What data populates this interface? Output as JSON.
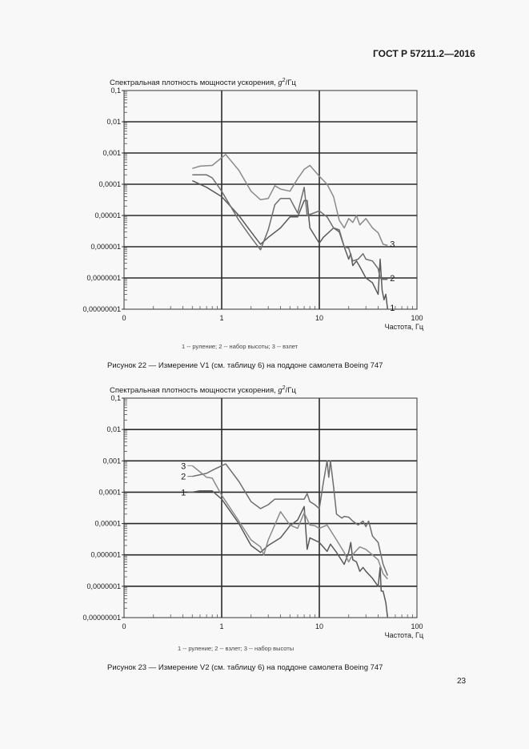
{
  "header": {
    "standard": "ГОСТ Р 57211.2—2016"
  },
  "page_number": "23",
  "figures": [
    {
      "ylabel_main": "Спектральная плотность мощности ускорения, ",
      "ylabel_unit_g": "g",
      "ylabel_unit_exp": "2",
      "ylabel_unit_rest": "/Гц",
      "xlabel": "Частота, Гц",
      "legend": "1 -- руление; 2 -- набор высоты; 3 -- взлет",
      "caption": "Рисунок 22 — Измерение V1 (см. таблицу 6) на поддоне самолета Boeing 747"
    },
    {
      "ylabel_main": "Спектральная плотность мощности ускорения, ",
      "ylabel_unit_g": "g",
      "ylabel_unit_exp": "2",
      "ylabel_unit_rest": "/Гц",
      "xlabel": "Частота, Гц",
      "legend": "1 -- руление; 2 -- взлет; 3 -- набор высоты",
      "caption": "Рисунок 23 — Измерение V2 (см. таблицу 6) на поддоне самолета Boeing 747"
    }
  ],
  "chart_data": [
    {
      "type": "line",
      "title": "Рисунок 22 — Измерение V1 (см. таблицу 6) на поддоне самолета Boeing 747",
      "xlabel": "Частота, Гц",
      "ylabel": "Спектральная плотность мощности ускорения, g2/Гц",
      "xscale": "log",
      "yscale": "log",
      "xlim": [
        0.1,
        100
      ],
      "ylim": [
        1e-08,
        0.1
      ],
      "x_tick_labels": [
        "0",
        "1",
        "10",
        "100"
      ],
      "y_tick_labels": [
        "0,1",
        "0,01",
        "0,001",
        "0,0001",
        "0,00001",
        "0,000001",
        "0,0000001",
        "0,00000001"
      ],
      "grid": true,
      "series": [
        {
          "name": "1 — руление",
          "label": "1",
          "points": [
            [
              0.5,
              0.00013
            ],
            [
              0.7,
              8e-05
            ],
            [
              1.0,
              4e-05
            ],
            [
              1.5,
              1e-05
            ],
            [
              2.0,
              3e-06
            ],
            [
              2.5,
              1.2e-06
            ],
            [
              3.0,
              2e-06
            ],
            [
              4.0,
              4e-06
            ],
            [
              5.0,
              9e-06
            ],
            [
              6.0,
              9e-06
            ],
            [
              7.0,
              3e-05
            ],
            [
              7.5,
              3e-05
            ],
            [
              8.0,
              4e-06
            ],
            [
              10.0,
              1.3e-06
            ],
            [
              11.0,
              2e-06
            ],
            [
              14.0,
              4e-06
            ],
            [
              16.0,
              3e-06
            ],
            [
              18.0,
              1e-06
            ],
            [
              20.0,
              4e-07
            ],
            [
              21.0,
              6e-07
            ],
            [
              22.0,
              2.5e-07
            ],
            [
              24.0,
              3.5e-07
            ],
            [
              26.0,
              2.3e-07
            ],
            [
              30.0,
              1e-07
            ],
            [
              35.0,
              7e-08
            ],
            [
              40.0,
              3e-08
            ],
            [
              42.0,
              4e-07
            ],
            [
              44.0,
              4e-08
            ],
            [
              46.0,
              2e-08
            ],
            [
              48.0,
              3e-08
            ],
            [
              50.0,
              1e-08
            ]
          ],
          "label_pos": [
            50,
            1e-08
          ]
        },
        {
          "name": "2 — набор высоты",
          "label": "2",
          "points": [
            [
              0.5,
              0.0002
            ],
            [
              0.7,
              0.0002
            ],
            [
              0.8,
              0.00016
            ],
            [
              1.0,
              6e-05
            ],
            [
              1.5,
              7e-06
            ],
            [
              2.0,
              2e-06
            ],
            [
              2.5,
              8e-07
            ],
            [
              3.0,
              3.5e-06
            ],
            [
              3.5,
              2.2e-05
            ],
            [
              4.0,
              3.5e-05
            ],
            [
              5.0,
              3.5e-05
            ],
            [
              6.0,
              1.2e-05
            ],
            [
              7.0,
              8e-05
            ],
            [
              7.5,
              1e-05
            ],
            [
              10.0,
              1.4e-05
            ],
            [
              12.0,
              9e-06
            ],
            [
              14.0,
              4e-06
            ],
            [
              16.0,
              3.5e-06
            ],
            [
              18.0,
              1e-06
            ],
            [
              20.0,
              9e-07
            ],
            [
              22.0,
              3.5e-07
            ],
            [
              25.0,
              4e-07
            ],
            [
              28.0,
              6e-07
            ],
            [
              30.0,
              4e-07
            ],
            [
              35.0,
              3.5e-07
            ],
            [
              40.0,
              2e-07
            ],
            [
              42.0,
              1e-07
            ],
            [
              44.0,
              9e-08
            ],
            [
              46.0,
              9e-08
            ],
            [
              50.0,
              9e-08
            ]
          ],
          "label_pos": [
            50,
            9e-08
          ]
        },
        {
          "name": "3 — взлет",
          "label": "3",
          "points": [
            [
              0.5,
              0.00032
            ],
            [
              0.6,
              0.00038
            ],
            [
              0.8,
              0.0004
            ],
            [
              1.1,
              0.0009
            ],
            [
              1.5,
              0.00028
            ],
            [
              2.0,
              6e-05
            ],
            [
              2.5,
              3.2e-05
            ],
            [
              3.0,
              3.5e-05
            ],
            [
              3.5,
              9e-05
            ],
            [
              4.0,
              7e-05
            ],
            [
              5.0,
              6e-05
            ],
            [
              6.0,
              0.00015
            ],
            [
              7.0,
              0.0003
            ],
            [
              8.0,
              0.0004
            ],
            [
              10.0,
              0.00018
            ],
            [
              12.0,
              0.0001
            ],
            [
              14.0,
              4e-05
            ],
            [
              16.0,
              7e-06
            ],
            [
              18.0,
              4e-06
            ],
            [
              20.0,
              8e-06
            ],
            [
              22.0,
              6e-06
            ],
            [
              24.0,
              1e-05
            ],
            [
              26.0,
              5e-06
            ],
            [
              30.0,
              8e-06
            ],
            [
              35.0,
              4e-06
            ],
            [
              40.0,
              2.8e-06
            ],
            [
              45.0,
              1.2e-06
            ],
            [
              50.0,
              1.1e-06
            ]
          ],
          "label_pos": [
            50,
            1.1e-06
          ]
        }
      ]
    },
    {
      "type": "line",
      "title": "Рисунок 23 — Измерение V2 (см. таблицу 6) на поддоне самолета Boeing 747",
      "xlabel": "Частота, Гц",
      "ylabel": "Спектральная плотность мощности ускорения, g2/Гц",
      "xscale": "log",
      "yscale": "log",
      "xlim": [
        0.1,
        100
      ],
      "ylim": [
        1e-08,
        0.1
      ],
      "x_tick_labels": [
        "0",
        "1",
        "10",
        "100"
      ],
      "y_tick_labels": [
        "0,1",
        "0,01",
        "0,001",
        "0,0001",
        "0,00001",
        "0,000001",
        "0,0000001",
        "0,00000001"
      ],
      "grid": true,
      "series": [
        {
          "name": "1 — руление",
          "label": "1",
          "points": [
            [
              0.5,
              0.0001
            ],
            [
              0.6,
              0.00011
            ],
            [
              0.8,
              0.00011
            ],
            [
              1.0,
              6e-05
            ],
            [
              1.5,
              1e-05
            ],
            [
              2.0,
              2e-06
            ],
            [
              2.5,
              1.2e-06
            ],
            [
              3.0,
              2e-06
            ],
            [
              4.0,
              3.5e-06
            ],
            [
              5.0,
              8.5e-06
            ],
            [
              6.0,
              1.3e-05
            ],
            [
              7.0,
              3.5e-05
            ],
            [
              7.5,
              1.5e-06
            ],
            [
              8.0,
              3.5e-06
            ],
            [
              10.0,
              2.5e-06
            ],
            [
              12.0,
              1.3e-06
            ],
            [
              13.0,
              2.2e-06
            ],
            [
              15.0,
              1.2e-06
            ],
            [
              18.0,
              5e-07
            ],
            [
              20.0,
              1.2e-06
            ],
            [
              21.0,
              2.5e-06
            ],
            [
              22.0,
              7e-07
            ],
            [
              24.0,
              6e-07
            ],
            [
              26.0,
              3e-07
            ],
            [
              28.0,
              4e-07
            ],
            [
              30.0,
              3e-07
            ],
            [
              35.0,
              1.8e-07
            ],
            [
              40.0,
              1e-07
            ],
            [
              42.0,
              4e-07
            ],
            [
              43.0,
              7e-08
            ],
            [
              45.0,
              7e-08
            ],
            [
              48.0,
              3e-08
            ],
            [
              50.0,
              1e-08
            ]
          ],
          "label_pos": [
            0.5,
            0.0001
          ]
        },
        {
          "name": "2 — взлет",
          "label": "2",
          "points": [
            [
              0.5,
              0.00032
            ],
            [
              0.7,
              0.0004
            ],
            [
              0.8,
              0.0005
            ],
            [
              1.1,
              0.0008
            ],
            [
              1.5,
              0.00022
            ],
            [
              2.0,
              5e-05
            ],
            [
              2.5,
              3e-05
            ],
            [
              3.0,
              4e-05
            ],
            [
              3.5,
              6e-05
            ],
            [
              5.0,
              6e-05
            ],
            [
              7.0,
              6e-05
            ],
            [
              7.5,
              9e-05
            ],
            [
              8.0,
              5e-05
            ],
            [
              9.0,
              4e-05
            ],
            [
              10.0,
              3e-05
            ],
            [
              11.0,
              0.0002
            ],
            [
              12.0,
              0.001
            ],
            [
              12.5,
              0.0003
            ],
            [
              13.0,
              0.001
            ],
            [
              14.0,
              0.00015
            ],
            [
              15.0,
              2e-05
            ],
            [
              17.0,
              1.5e-05
            ],
            [
              18.0,
              1.7e-05
            ],
            [
              20.0,
              1.6e-05
            ],
            [
              22.0,
              1.2e-05
            ],
            [
              25.0,
              9e-06
            ],
            [
              28.0,
              1.2e-05
            ],
            [
              30.0,
              8e-06
            ],
            [
              32.0,
              1.2e-05
            ],
            [
              35.0,
              4e-06
            ],
            [
              40.0,
              2.5e-06
            ],
            [
              45.0,
              5e-07
            ],
            [
              50.0,
              2.2e-07
            ]
          ],
          "label_pos": [
            0.5,
            0.00032
          ]
        },
        {
          "name": "3 — набор высоты",
          "label": "3",
          "points": [
            [
              0.5,
              0.0007
            ],
            [
              0.7,
              0.0003
            ],
            [
              0.8,
              0.00028
            ],
            [
              1.0,
              8e-05
            ],
            [
              1.5,
              1.2e-05
            ],
            [
              2.0,
              3e-06
            ],
            [
              2.5,
              1.8e-06
            ],
            [
              2.7,
              1e-06
            ],
            [
              3.0,
              3e-06
            ],
            [
              4.0,
              2.4e-05
            ],
            [
              5.0,
              9e-06
            ],
            [
              6.0,
              7e-06
            ],
            [
              7.0,
              2.2e-05
            ],
            [
              8.0,
              9e-06
            ],
            [
              9.0,
              8.5e-06
            ],
            [
              10.0,
              7e-06
            ],
            [
              12.0,
              9e-06
            ],
            [
              15.0,
              3e-06
            ],
            [
              18.0,
              1.2e-06
            ],
            [
              20.0,
              6e-07
            ],
            [
              21.0,
              8e-07
            ],
            [
              23.0,
              1.2e-06
            ],
            [
              26.0,
              1.8e-06
            ],
            [
              30.0,
              1.5e-06
            ],
            [
              35.0,
              1e-06
            ],
            [
              40.0,
              7e-07
            ],
            [
              45.0,
              2.5e-07
            ],
            [
              50.0,
              1.7e-07
            ]
          ],
          "label_pos": [
            0.5,
            0.0007
          ]
        }
      ]
    }
  ]
}
